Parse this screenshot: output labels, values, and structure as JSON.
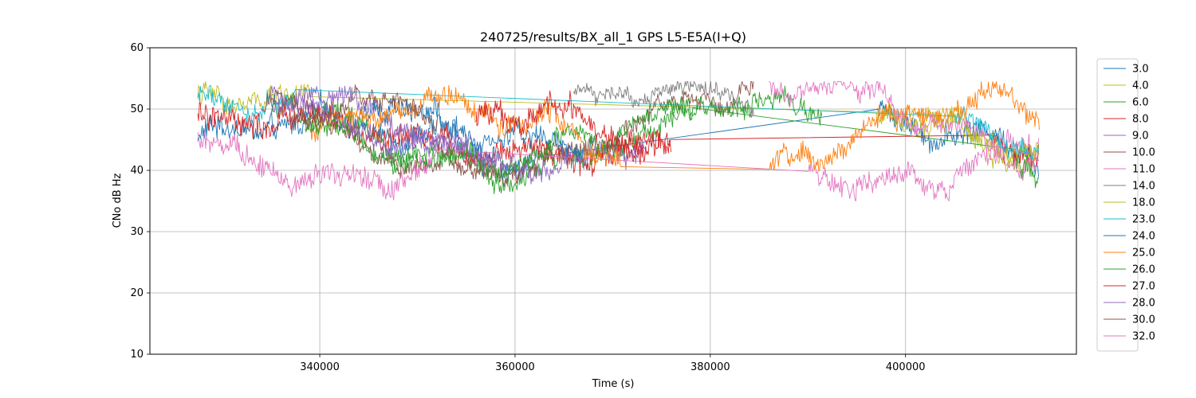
{
  "chart_data": {
    "type": "line",
    "title": "240725/results/BX_all_1 GPS L5-E5A(I+Q)",
    "xlabel": "Time (s)",
    "ylabel": "CNo dB Hz",
    "xlim": [
      322600,
      417500
    ],
    "ylim": [
      10,
      60
    ],
    "xticks": [
      340000,
      360000,
      380000,
      400000
    ],
    "xtick_labels": [
      "340000",
      "360000",
      "380000",
      "400000"
    ],
    "yticks": [
      10,
      20,
      30,
      40,
      50,
      60
    ],
    "ytick_labels": [
      "10",
      "20",
      "30",
      "40",
      "50",
      "60"
    ],
    "grid": true,
    "legend_position": "outside-right",
    "series": [
      {
        "name": "3.0",
        "color": "#1f77b4",
        "start": 327500,
        "end": 413700,
        "base": 44,
        "amp": 4,
        "noise": 1.6,
        "phase": 0.2,
        "gap": [
          362300,
          397000
        ]
      },
      {
        "name": "4.0",
        "color": "#bcbd22",
        "start": 327500,
        "end": 413700,
        "base": 47,
        "amp": 5,
        "noise": 1.4,
        "phase": 1.1,
        "gap": [
          339000,
          398000
        ]
      },
      {
        "name": "6.0",
        "color": "#2ca02c",
        "start": 335000,
        "end": 413700,
        "base": 46,
        "amp": 6,
        "noise": 1.5,
        "phase": 2.0,
        "gap": [
          378200,
          411000
        ]
      },
      {
        "name": "8.0",
        "color": "#d62728",
        "start": 327500,
        "end": 413700,
        "base": 45,
        "amp": 3,
        "noise": 1.8,
        "phase": 0.7,
        "gap": [
          376000,
          409000
        ]
      },
      {
        "name": "9.0",
        "color": "#9467bd",
        "start": 335000,
        "end": 373500,
        "base": 47,
        "amp": 6,
        "noise": 1.5,
        "phase": 1.6,
        "gap": null
      },
      {
        "name": "10.0",
        "color": "#8c564b",
        "start": 337000,
        "end": 384500,
        "base": 46,
        "amp": 6,
        "noise": 1.2,
        "phase": 2.6,
        "gap": null
      },
      {
        "name": "11.0",
        "color": "#e377c2",
        "start": 327500,
        "end": 413700,
        "base": 44,
        "amp": 6,
        "noise": 1.6,
        "phase": 3.1,
        "gap": [
          352500,
          390000
        ]
      },
      {
        "name": "14.0",
        "color": "#7f7f7f",
        "start": 366000,
        "end": 384500,
        "base": 49,
        "amp": 4,
        "noise": 1.0,
        "phase": 0.4,
        "gap": null
      },
      {
        "name": "18.0",
        "color": "#bcbd22",
        "start": 397000,
        "end": 413700,
        "base": 46,
        "amp": 5,
        "noise": 1.2,
        "phase": 1.9,
        "gap": null
      },
      {
        "name": "23.0",
        "color": "#17becf",
        "start": 327500,
        "end": 413700,
        "base": 48,
        "amp": 4,
        "noise": 1.3,
        "phase": 0.9,
        "gap": [
          337500,
          405000
        ]
      },
      {
        "name": "24.0",
        "color": "#1f77b4",
        "start": 344000,
        "end": 368000,
        "base": 48,
        "amp": 4,
        "noise": 1.4,
        "phase": 2.2,
        "gap": null
      },
      {
        "name": "25.0",
        "color": "#ff7f0e",
        "start": 339000,
        "end": 413700,
        "base": 45,
        "amp": 6,
        "noise": 1.5,
        "phase": 0.1,
        "gap": [
          371000,
          386000
        ]
      },
      {
        "name": "26.0",
        "color": "#2ca02c",
        "start": 338500,
        "end": 391500,
        "base": 46,
        "amp": 5,
        "noise": 1.3,
        "phase": 2.9,
        "gap": null
      },
      {
        "name": "27.0",
        "color": "#d62728",
        "start": 356000,
        "end": 376000,
        "base": 45,
        "amp": 4,
        "noise": 1.7,
        "phase": 1.3,
        "gap": null
      },
      {
        "name": "28.0",
        "color": "#9467bd",
        "start": 335000,
        "end": 360000,
        "base": 48,
        "amp": 5,
        "noise": 1.2,
        "phase": 2.4,
        "gap": null
      },
      {
        "name": "30.0",
        "color": "#8c564b",
        "start": 334000,
        "end": 352000,
        "base": 48,
        "amp": 3,
        "noise": 1.2,
        "phase": 0.6,
        "gap": null
      },
      {
        "name": "32.0",
        "color": "#e377c2",
        "start": 386000,
        "end": 413700,
        "base": 48,
        "amp": 6,
        "noise": 1.1,
        "phase": 1.4,
        "gap": null
      }
    ]
  }
}
